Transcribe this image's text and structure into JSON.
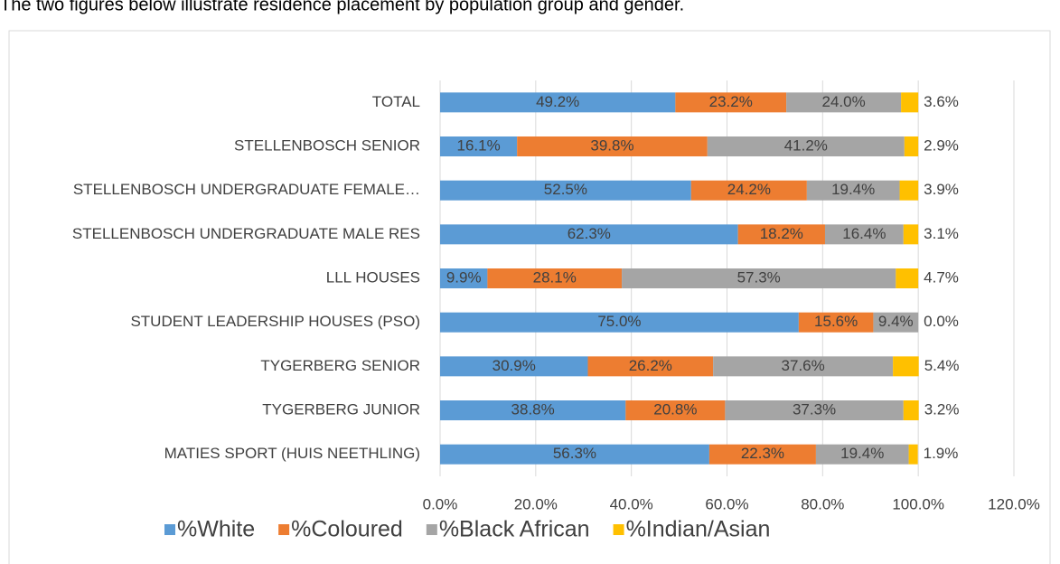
{
  "intro_text": "The two figures below illustrate residence placement by population group and gender.",
  "chart_data": {
    "type": "stacked-barh",
    "categories": [
      "TOTAL",
      "STELLENBOSCH SENIOR",
      "STELLENBOSCH UNDERGRADUATE FEMALE…",
      "STELLENBOSCH UNDERGRADUATE MALE RES",
      "LLL HOUSES",
      "STUDENT LEADERSHIP HOUSES (PSO)",
      "TYGERBERG SENIOR",
      "TYGERBERG JUNIOR",
      "MATIES SPORT (HUIS NEETHLING)"
    ],
    "series": [
      {
        "name": "%White",
        "color": "#5b9bd5",
        "values": [
          49.2,
          16.1,
          52.5,
          62.3,
          9.9,
          75.0,
          30.9,
          38.8,
          56.3
        ],
        "value_labels": [
          "49.2%",
          "16.1%",
          "52.5%",
          "62.3%",
          "9.9%",
          "75.0%",
          "30.9%",
          "38.8%",
          "56.3%"
        ]
      },
      {
        "name": "%Coloured",
        "color": "#ed7d31",
        "values": [
          23.2,
          39.8,
          24.2,
          18.2,
          28.1,
          15.6,
          26.2,
          20.8,
          22.3
        ],
        "value_labels": [
          "23.2%",
          "39.8%",
          "24.2%",
          "18.2%",
          "28.1%",
          "15.6%",
          "26.2%",
          "20.8%",
          "22.3%"
        ]
      },
      {
        "name": "%Black African",
        "color": "#a5a5a5",
        "values": [
          24.0,
          41.2,
          19.4,
          16.4,
          57.3,
          9.4,
          37.6,
          37.3,
          19.4
        ],
        "value_labels": [
          "24.0%",
          "41.2%",
          "19.4%",
          "16.4%",
          "57.3%",
          "9.4%",
          "37.6%",
          "37.3%",
          "19.4%"
        ]
      },
      {
        "name": "%Indian/Asian",
        "color": "#ffc000",
        "values": [
          3.6,
          2.9,
          3.9,
          3.1,
          4.7,
          0.0,
          5.4,
          3.2,
          1.9
        ],
        "value_labels": [
          "3.6%",
          "2.9%",
          "3.9%",
          "3.1%",
          "4.7%",
          "0.0%",
          "5.4%",
          "3.2%",
          "1.9%"
        ]
      }
    ],
    "xlim": [
      0,
      120
    ],
    "xticks": [
      {
        "value": 0,
        "label": "0.0%"
      },
      {
        "value": 20,
        "label": "20.0%"
      },
      {
        "value": 40,
        "label": "40.0%"
      },
      {
        "value": 60,
        "label": "60.0%"
      },
      {
        "value": 80,
        "label": "80.0%"
      },
      {
        "value": 100,
        "label": "100.0%"
      },
      {
        "value": 120,
        "label": "120.0%"
      }
    ],
    "grid": true,
    "legend": "bottom"
  }
}
